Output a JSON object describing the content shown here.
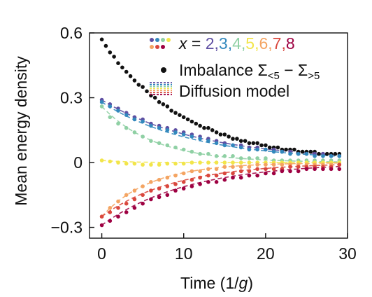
{
  "chart_data": {
    "type": "scatter",
    "xlabel": "Time (1/g)",
    "ylabel": "Mean energy density",
    "xlim": [
      -1.5,
      30
    ],
    "ylim": [
      -0.35,
      0.6
    ],
    "xticks": [
      0,
      10,
      20,
      30
    ],
    "yticks": [
      -0.3,
      0,
      0.3,
      0.6
    ],
    "ytick_labels": [
      "−0.3",
      "0",
      "0.3",
      "0.6"
    ],
    "grid": false,
    "legend_position": "top-right",
    "legend": {
      "row1_prefix": "x = ",
      "row1_values": [
        "2",
        "3",
        "4",
        "5",
        "6",
        "7",
        "8"
      ],
      "row1_separator": ",",
      "row2": "Imbalance Σ<5 − Σ>5",
      "row2_main": "Imbalance Σ",
      "row2_sub1": "<5",
      "row2_mid": " − Σ",
      "row2_sub2": ">5",
      "row3": "Diffusion model"
    },
    "series": [
      {
        "name": "Imbalance Σ<5 − Σ>5",
        "color": "#111111",
        "y0": 0.57,
        "yinf": 0.0,
        "tau": 10.0,
        "kind": "exp",
        "x": [
          0,
          0.5,
          1,
          1.5,
          2,
          2.5,
          3,
          3.5,
          4,
          4.5,
          5,
          5.5,
          6,
          6.5,
          7,
          7.5,
          8,
          8.5,
          9,
          9.5,
          10,
          10.5,
          11,
          11.5,
          12,
          12.5,
          13,
          13.5,
          14,
          14.5,
          15,
          15.5,
          16,
          16.5,
          17,
          17.5,
          18,
          18.5,
          19,
          19.5,
          20,
          20.5,
          21,
          21.5,
          22,
          22.5,
          23,
          23.5,
          24,
          24.5,
          25,
          25.5,
          26,
          26.5,
          27,
          27.5,
          28,
          28.5,
          29
        ],
        "y": [
          0.57,
          0.54,
          0.51,
          0.49,
          0.46,
          0.44,
          0.42,
          0.4,
          0.38,
          0.36,
          0.35,
          0.33,
          0.31,
          0.3,
          0.28,
          0.27,
          0.26,
          0.24,
          0.23,
          0.22,
          0.21,
          0.2,
          0.19,
          0.18,
          0.17,
          0.16,
          0.16,
          0.15,
          0.14,
          0.13,
          0.13,
          0.12,
          0.11,
          0.11,
          0.1,
          0.1,
          0.09,
          0.09,
          0.09,
          0.08,
          0.08,
          0.07,
          0.07,
          0.07,
          0.06,
          0.06,
          0.06,
          0.06,
          0.05,
          0.05,
          0.05,
          0.05,
          0.05,
          0.04,
          0.04,
          0.04,
          0.04,
          0.04,
          0.04
        ]
      },
      {
        "name": "x = 2",
        "color": "#5e4fa2",
        "y0": 0.29,
        "yinf": 0.01,
        "tau": 12.0,
        "kind": "exp",
        "x": [
          0,
          1,
          2,
          3,
          4,
          5,
          6,
          7,
          8,
          9,
          10,
          11,
          12,
          13,
          14,
          15,
          16,
          17,
          18,
          19,
          20,
          21,
          22,
          23,
          24,
          25,
          26,
          27,
          28,
          29
        ],
        "y": [
          0.29,
          0.27,
          0.25,
          0.23,
          0.21,
          0.2,
          0.18,
          0.17,
          0.16,
          0.15,
          0.14,
          0.13,
          0.12,
          0.11,
          0.1,
          0.09,
          0.08,
          0.08,
          0.07,
          0.07,
          0.06,
          0.06,
          0.05,
          0.05,
          0.04,
          0.04,
          0.04,
          0.04,
          0.03,
          0.03
        ]
      },
      {
        "name": "x = 3",
        "color": "#3288bd",
        "y0": 0.28,
        "yinf": 0.01,
        "tau": 11.0,
        "kind": "exp",
        "x": [
          0,
          1,
          2,
          3,
          4,
          5,
          6,
          7,
          8,
          9,
          10,
          11,
          12,
          13,
          14,
          15,
          16,
          17,
          18,
          19,
          20,
          21,
          22,
          23,
          24,
          25,
          26,
          27,
          28,
          29
        ],
        "y": [
          0.28,
          0.26,
          0.24,
          0.22,
          0.2,
          0.19,
          0.17,
          0.16,
          0.15,
          0.14,
          0.13,
          0.12,
          0.11,
          0.1,
          0.09,
          0.08,
          0.08,
          0.07,
          0.06,
          0.06,
          0.06,
          0.05,
          0.05,
          0.04,
          0.04,
          0.04,
          0.03,
          0.03,
          0.03,
          0.03
        ]
      },
      {
        "name": "x = 4",
        "color": "#8fd0a4",
        "y0": 0.26,
        "yinf": 0.0,
        "tau": 6.5,
        "kind": "exp",
        "x": [
          0,
          1,
          2,
          3,
          4,
          5,
          6,
          7,
          8,
          9,
          10,
          11,
          12,
          13,
          14,
          15,
          16,
          17,
          18,
          19,
          20,
          21,
          22,
          23,
          24,
          25,
          26,
          27,
          28,
          29
        ],
        "y": [
          0.26,
          0.21,
          0.18,
          0.16,
          0.14,
          0.12,
          0.1,
          0.09,
          0.08,
          0.07,
          0.06,
          0.05,
          0.04,
          0.04,
          0.03,
          0.03,
          0.03,
          0.02,
          0.02,
          0.02,
          0.02,
          0.01,
          0.01,
          0.01,
          0.01,
          0.01,
          0.01,
          0.01,
          0.01,
          0.01
        ]
      },
      {
        "name": "x = 5",
        "color": "#f2e54a",
        "y0": 0.01,
        "yinf": 0.0,
        "tau": 3.0,
        "kind": "exp",
        "x": [
          0,
          1,
          2,
          3,
          4,
          5,
          6,
          7,
          8,
          9,
          10,
          11,
          12,
          13,
          14,
          15,
          16,
          17,
          18,
          19,
          20,
          21,
          22,
          23,
          24,
          25,
          26,
          27,
          28,
          29
        ],
        "y": [
          0.01,
          0.005,
          0,
          -0.005,
          -0.005,
          -0.01,
          -0.01,
          -0.01,
          -0.005,
          -0.005,
          -0.005,
          0,
          0,
          0,
          0,
          0,
          0,
          0,
          0,
          0,
          0,
          0,
          0,
          0,
          0,
          0,
          0,
          0,
          0,
          0
        ]
      },
      {
        "name": "x = 6",
        "color": "#f4a462",
        "y0": -0.25,
        "yinf": 0.0,
        "tau": 6.0,
        "kind": "exp",
        "x": [
          0,
          1,
          2,
          3,
          4,
          5,
          6,
          7,
          8,
          9,
          10,
          11,
          12,
          13,
          14,
          15,
          16,
          17,
          18,
          19,
          20,
          21,
          22,
          23,
          24,
          25,
          26,
          27,
          28,
          29
        ],
        "y": [
          -0.25,
          -0.21,
          -0.18,
          -0.15,
          -0.13,
          -0.11,
          -0.09,
          -0.08,
          -0.07,
          -0.06,
          -0.05,
          -0.04,
          -0.04,
          -0.03,
          -0.03,
          -0.02,
          -0.02,
          -0.02,
          -0.02,
          -0.01,
          -0.01,
          -0.01,
          -0.01,
          -0.01,
          -0.01,
          -0.01,
          -0.01,
          -0.01,
          -0.01,
          -0.01
        ]
      },
      {
        "name": "x = 7",
        "color": "#d9473d",
        "y0": -0.25,
        "yinf": 0.0,
        "tau": 9.0,
        "kind": "exp",
        "x": [
          0,
          1,
          2,
          3,
          4,
          5,
          6,
          7,
          8,
          9,
          10,
          11,
          12,
          13,
          14,
          15,
          16,
          17,
          18,
          19,
          20,
          21,
          22,
          23,
          24,
          25,
          26,
          27,
          28,
          29
        ],
        "y": [
          -0.25,
          -0.23,
          -0.21,
          -0.19,
          -0.17,
          -0.15,
          -0.13,
          -0.12,
          -0.11,
          -0.1,
          -0.09,
          -0.08,
          -0.07,
          -0.06,
          -0.06,
          -0.05,
          -0.05,
          -0.04,
          -0.04,
          -0.03,
          -0.03,
          -0.03,
          -0.03,
          -0.02,
          -0.02,
          -0.02,
          -0.02,
          -0.02,
          -0.02,
          -0.01
        ]
      },
      {
        "name": "x = 8",
        "color": "#9e0142",
        "y0": -0.29,
        "yinf": 0.0,
        "tau": 10.5,
        "kind": "exp",
        "x": [
          0,
          1,
          2,
          3,
          4,
          5,
          6,
          7,
          8,
          9,
          10,
          11,
          12,
          13,
          14,
          15,
          16,
          17,
          18,
          19,
          20,
          21,
          22,
          23,
          24,
          25,
          26,
          27,
          28,
          29
        ],
        "y": [
          -0.29,
          -0.27,
          -0.25,
          -0.23,
          -0.21,
          -0.19,
          -0.17,
          -0.16,
          -0.15,
          -0.13,
          -0.12,
          -0.11,
          -0.1,
          -0.09,
          -0.09,
          -0.08,
          -0.07,
          -0.07,
          -0.06,
          -0.06,
          -0.05,
          -0.05,
          -0.04,
          -0.04,
          -0.04,
          -0.03,
          -0.03,
          -0.03,
          -0.03,
          -0.03
        ]
      }
    ]
  },
  "colors": {
    "imbalance": "#111111",
    "x2": "#5e4fa2",
    "x3": "#3288bd",
    "x4": "#8fd0a4",
    "x5": "#f2e54a",
    "x6": "#f4a462",
    "x7": "#d9473d",
    "x8": "#9e0142"
  }
}
